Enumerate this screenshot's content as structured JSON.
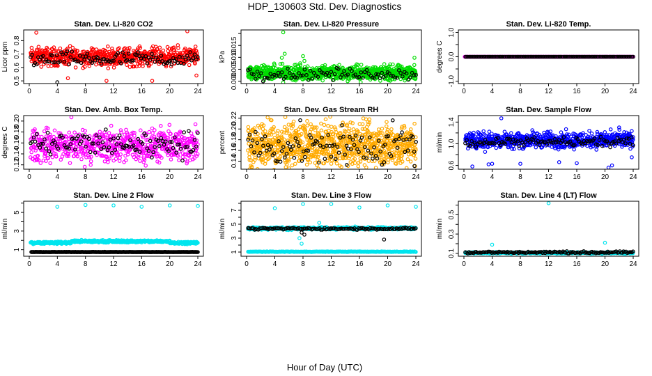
{
  "title": "HDP_130603  Std. Dev. Diagnostics",
  "xlabel": "Hour of Day (UTC)",
  "chart_data": [
    {
      "type": "scatter",
      "title": "Stan. Dev. Li-820 CO2",
      "ylabel": "Licor ppm",
      "xlim": [
        0,
        24
      ],
      "ylim": [
        0.48,
        0.88
      ],
      "xticks": [
        0,
        4,
        8,
        12,
        16,
        20,
        24
      ],
      "yticks": [
        0.5,
        0.6,
        0.7,
        0.8
      ],
      "ytick_labels": [
        "0.5",
        "0.6",
        "0.7",
        "0.8"
      ],
      "series": [
        {
          "color": "#ff0000",
          "x_range": [
            0.2,
            24
          ],
          "count": 620,
          "pattern": "band",
          "center": 0.68,
          "spread": 0.1,
          "outliers": [
            [
              1,
              0.86
            ],
            [
              5.5,
              0.52
            ],
            [
              11,
              0.5
            ],
            [
              17.5,
              0.5
            ],
            [
              22.5,
              0.87
            ],
            [
              23.8,
              0.54
            ]
          ]
        },
        {
          "color": "#000000",
          "x_range": [
            0.2,
            24
          ],
          "count": 110,
          "pattern": "band",
          "center": 0.66,
          "spread": 0.08,
          "outliers": [
            [
              4,
              0.49
            ]
          ]
        }
      ]
    },
    {
      "type": "scatter",
      "title": "Stan. Dev. Li-820 Pressure",
      "ylabel": "kPa",
      "xlim": [
        0,
        24
      ],
      "ylim": [
        -0.001,
        0.0215
      ],
      "xticks": [
        0,
        4,
        8,
        12,
        16,
        20,
        24
      ],
      "yticks": [
        0.0,
        0.005,
        0.01,
        0.015,
        0.02
      ],
      "ytick_labels": [
        "0.000",
        "0.005",
        "0.010",
        "0.015",
        ""
      ],
      "series": [
        {
          "color": "#00dd00",
          "x_range": [
            0.2,
            24
          ],
          "count": 900,
          "pattern": "band",
          "center": 0.0035,
          "spread": 0.0045,
          "outliers": [
            [
              5.2,
              0.0205
            ],
            [
              5,
              0.0098
            ],
            [
              5.4,
              0.0115
            ],
            [
              4.8,
              0.0072
            ],
            [
              8,
              0.0105
            ],
            [
              8.2,
              0.0085
            ],
            [
              7.6,
              0.0075
            ],
            [
              23.8,
              0.0098
            ],
            [
              5.2,
              -0.0005
            ]
          ]
        },
        {
          "color": "#000000",
          "x_range": [
            0.2,
            24
          ],
          "count": 90,
          "pattern": "band",
          "center": 0.003,
          "spread": 0.0035,
          "outliers": []
        }
      ]
    },
    {
      "type": "scatter",
      "title": "Stan. Dev. Li-820 Temp.",
      "ylabel": "degrees C",
      "xlim": [
        0,
        24
      ],
      "ylim": [
        -1.1,
        1.1
      ],
      "xticks": [
        0,
        4,
        8,
        12,
        16,
        20,
        24
      ],
      "yticks": [
        -1.0,
        -0.5,
        0.0,
        0.5,
        1.0
      ],
      "ytick_labels": [
        "-1.0",
        "",
        "0.0",
        "",
        "1.0"
      ],
      "series": [
        {
          "color": "#ff00ff",
          "x_range": [
            0.1,
            24
          ],
          "count": 220,
          "pattern": "flat",
          "center": 0.0,
          "spread": 0.0,
          "outliers": []
        },
        {
          "color": "#000000",
          "x_range": [
            0.2,
            24
          ],
          "count": 140,
          "pattern": "flat",
          "center": 0.0,
          "spread": 0.0,
          "outliers": []
        }
      ]
    },
    {
      "type": "scatter",
      "title": "Stan. Dev. Amb. Box Temp.",
      "ylabel": "degrees C",
      "xlim": [
        0,
        24
      ],
      "ylim": [
        0.112,
        0.21
      ],
      "xticks": [
        0,
        4,
        8,
        12,
        16,
        20,
        24
      ],
      "yticks": [
        0.12,
        0.14,
        0.16,
        0.18,
        0.2
      ],
      "ytick_labels": [
        "0.12",
        "0.14",
        "0.16",
        "0.18",
        "0.20"
      ],
      "series": [
        {
          "color": "#ff00ff",
          "x_range": [
            0.2,
            24
          ],
          "count": 620,
          "pattern": "band",
          "center": 0.155,
          "spread": 0.045,
          "outliers": [
            [
              6,
              0.207
            ],
            [
              11.2,
              0.125
            ],
            [
              13.5,
              0.125
            ],
            [
              22.5,
              0.126
            ]
          ]
        },
        {
          "color": "#000000",
          "x_range": [
            0.2,
            24
          ],
          "count": 110,
          "pattern": "band",
          "center": 0.158,
          "spread": 0.035,
          "outliers": []
        }
      ]
    },
    {
      "type": "scatter",
      "title": "Stan. Dev. Gas Stream RH",
      "ylabel": "percent",
      "xlim": [
        0,
        24
      ],
      "ylim": [
        0.125,
        0.225
      ],
      "xticks": [
        0,
        4,
        8,
        12,
        16,
        20,
        24
      ],
      "yticks": [
        0.14,
        0.16,
        0.18,
        0.2,
        0.22
      ],
      "ytick_labels": [
        "0.14",
        "0.16",
        "0.18",
        "0.20",
        "0.22"
      ],
      "series": [
        {
          "color": "#ffaa00",
          "x_range": [
            0.2,
            24
          ],
          "count": 950,
          "pattern": "band",
          "center": 0.17,
          "spread": 0.06,
          "outliers": []
        },
        {
          "color": "#000000",
          "x_range": [
            0.2,
            24
          ],
          "count": 110,
          "pattern": "band",
          "center": 0.168,
          "spread": 0.05,
          "outliers": [
            [
              14.2,
              0.133
            ],
            [
              23.8,
              0.131
            ],
            [
              19.5,
              0.138
            ]
          ]
        }
      ]
    },
    {
      "type": "scatter",
      "title": "Stan. Dev. Sample Flow",
      "ylabel": "ml/min",
      "xlim": [
        0,
        24
      ],
      "ylim": [
        0.53,
        1.52
      ],
      "xticks": [
        0,
        4,
        8,
        12,
        16,
        20,
        24
      ],
      "yticks": [
        0.6,
        0.8,
        1.0,
        1.2,
        1.4
      ],
      "ytick_labels": [
        "0.6",
        "",
        "1.0",
        "",
        "1.4"
      ],
      "series": [
        {
          "color": "#0000ff",
          "x_range": [
            0.2,
            24
          ],
          "count": 700,
          "pattern": "band",
          "center": 1.07,
          "spread": 0.22,
          "outliers": [
            [
              1.2,
              0.58
            ],
            [
              3.5,
              0.62
            ],
            [
              4,
              0.63
            ],
            [
              5.3,
              1.47
            ],
            [
              8,
              0.63
            ],
            [
              13.5,
              0.66
            ],
            [
              16,
              0.64
            ],
            [
              20.5,
              0.56
            ],
            [
              21,
              0.6
            ],
            [
              22,
              1.3
            ],
            [
              23.8,
              0.75
            ],
            [
              3,
              0.85
            ]
          ]
        },
        {
          "color": "#000000",
          "x_range": [
            0.2,
            24
          ],
          "count": 110,
          "pattern": "band",
          "center": 1.03,
          "spread": 0.12,
          "outliers": []
        }
      ]
    },
    {
      "type": "scatter",
      "title": "Stan. Dev. Line 2 Flow",
      "ylabel": "ml/min",
      "xlim": [
        0,
        24
      ],
      "ylim": [
        0.3,
        6.2
      ],
      "xticks": [
        0,
        4,
        8,
        12,
        16,
        20,
        24
      ],
      "yticks": [
        1,
        2,
        3,
        4,
        5,
        6
      ],
      "ytick_labels": [
        "1",
        "",
        "3",
        "",
        "5",
        ""
      ],
      "series": [
        {
          "color": "#00e5ee",
          "x_range": [
            0.2,
            24
          ],
          "count": 520,
          "pattern": "hump",
          "center": 1.75,
          "spread": 0.3,
          "outliers": [
            [
              4,
              5.6
            ],
            [
              8,
              5.8
            ],
            [
              12,
              5.75
            ],
            [
              16,
              5.6
            ],
            [
              20,
              5.75
            ],
            [
              24,
              5.7
            ]
          ]
        },
        {
          "color": "#000000",
          "x_range": [
            0.3,
            24
          ],
          "count": 250,
          "pattern": "flat",
          "center": 0.75,
          "spread": 0.02,
          "outliers": []
        }
      ]
    },
    {
      "type": "scatter",
      "title": "Stan. Dev. Line 3 Flow",
      "ylabel": "ml/min",
      "xlim": [
        0,
        24
      ],
      "ylim": [
        0.4,
        8.3
      ],
      "xticks": [
        0,
        4,
        8,
        12,
        16,
        20,
        24
      ],
      "yticks": [
        1,
        2,
        3,
        4,
        5,
        6,
        7,
        8
      ],
      "ytick_labels": [
        "1",
        "",
        "3",
        "",
        "5",
        "",
        "7",
        ""
      ],
      "series": [
        {
          "color": "#00e5ee",
          "x_range": [
            0.2,
            24
          ],
          "count": 380,
          "pattern": "flat",
          "center": 4.4,
          "spread": 0.3,
          "outliers": [
            [
              4,
              7.3
            ],
            [
              8,
              7.9
            ],
            [
              12,
              7.9
            ],
            [
              16,
              7.4
            ],
            [
              20,
              7.7
            ],
            [
              24,
              7.5
            ],
            [
              7.5,
              3.0
            ],
            [
              7.8,
              2.2
            ],
            [
              10.3,
              5.2
            ]
          ]
        },
        {
          "color": "#00e5ee",
          "x_range": [
            0.2,
            24
          ],
          "count": 260,
          "pattern": "flat",
          "center": 1.05,
          "spread": 0.06,
          "outliers": []
        },
        {
          "color": "#000000",
          "x_range": [
            0.2,
            24
          ],
          "count": 130,
          "pattern": "flat",
          "center": 4.35,
          "spread": 0.2,
          "outliers": [
            [
              7.8,
              3.8
            ],
            [
              19.5,
              2.8
            ],
            [
              8.2,
              3.5
            ]
          ]
        }
      ]
    },
    {
      "type": "scatter",
      "title": "Stan. Dev. Line 4 (LT) Flow",
      "ylabel": "ml/min",
      "xlim": [
        0,
        24
      ],
      "ylim": [
        0.07,
        0.64
      ],
      "xticks": [
        0,
        4,
        8,
        12,
        16,
        20,
        24
      ],
      "yticks": [
        0.1,
        0.2,
        0.3,
        0.4,
        0.5,
        0.6
      ],
      "ytick_labels": [
        "0.1",
        "",
        "0.3",
        "",
        "0.5",
        ""
      ],
      "series": [
        {
          "color": "#00e5ee",
          "x_range": [
            0.2,
            24
          ],
          "count": 420,
          "pattern": "flat",
          "center": 0.105,
          "spread": 0.012,
          "outliers": [
            [
              12,
              0.62
            ],
            [
              4,
              0.19
            ],
            [
              20,
              0.21
            ]
          ]
        },
        {
          "color": "#000000",
          "x_range": [
            0.2,
            24
          ],
          "count": 140,
          "pattern": "flat",
          "center": 0.11,
          "spread": 0.015,
          "outliers": []
        }
      ]
    }
  ]
}
